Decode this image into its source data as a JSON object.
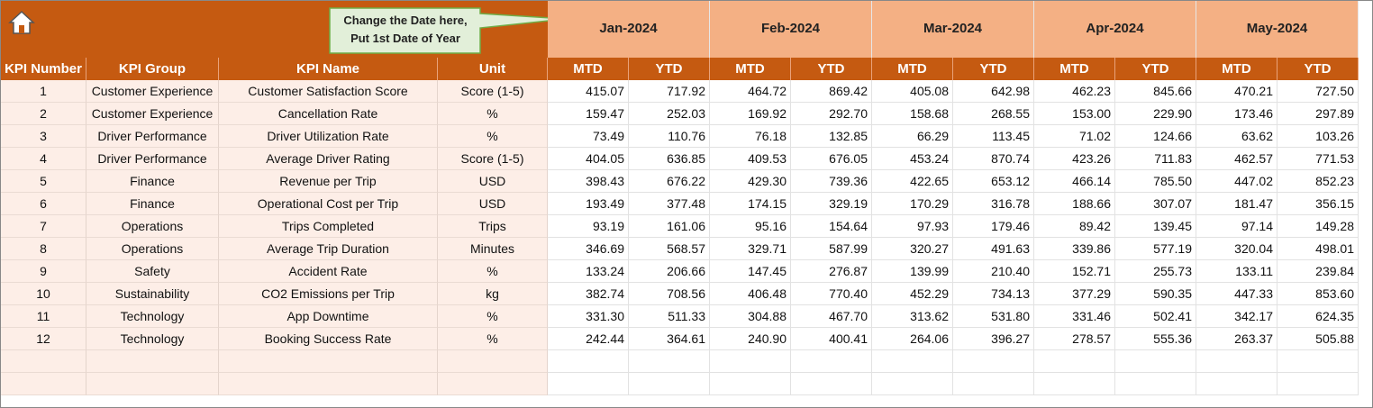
{
  "callout": {
    "lines": [
      "Change the Date here,",
      "Put 1st Date of Year"
    ]
  },
  "table": {
    "columns": [
      "KPI Number",
      "KPI Group",
      "KPI Name",
      "Unit"
    ],
    "months": [
      {
        "label": "Jan-2024",
        "sub": [
          "MTD",
          "YTD"
        ]
      },
      {
        "label": "Feb-2024",
        "sub": [
          "MTD",
          "YTD"
        ]
      },
      {
        "label": "Mar-2024",
        "sub": [
          "MTD",
          "YTD"
        ]
      },
      {
        "label": "Apr-2024",
        "sub": [
          "MTD",
          "YTD"
        ]
      },
      {
        "label": "May-2024",
        "sub": [
          "MTD",
          "YTD"
        ]
      }
    ],
    "rows": [
      [
        "1",
        "Customer Experience",
        "Customer Satisfaction Score",
        "Score (1-5)",
        "415.07",
        "717.92",
        "464.72",
        "869.42",
        "405.08",
        "642.98",
        "462.23",
        "845.66",
        "470.21",
        "727.50"
      ],
      [
        "2",
        "Customer Experience",
        "Cancellation Rate",
        "%",
        "159.47",
        "252.03",
        "169.92",
        "292.70",
        "158.68",
        "268.55",
        "153.00",
        "229.90",
        "173.46",
        "297.89"
      ],
      [
        "3",
        "Driver Performance",
        "Driver Utilization Rate",
        "%",
        "73.49",
        "110.76",
        "76.18",
        "132.85",
        "66.29",
        "113.45",
        "71.02",
        "124.66",
        "63.62",
        "103.26"
      ],
      [
        "4",
        "Driver Performance",
        "Average Driver Rating",
        "Score (1-5)",
        "404.05",
        "636.85",
        "409.53",
        "676.05",
        "453.24",
        "870.74",
        "423.26",
        "711.83",
        "462.57",
        "771.53"
      ],
      [
        "5",
        "Finance",
        "Revenue per Trip",
        "USD",
        "398.43",
        "676.22",
        "429.30",
        "739.36",
        "422.65",
        "653.12",
        "466.14",
        "785.50",
        "447.02",
        "852.23"
      ],
      [
        "6",
        "Finance",
        "Operational Cost per Trip",
        "USD",
        "193.49",
        "377.48",
        "174.15",
        "329.19",
        "170.29",
        "316.78",
        "188.66",
        "307.07",
        "181.47",
        "356.15"
      ],
      [
        "7",
        "Operations",
        "Trips Completed",
        "Trips",
        "93.19",
        "161.06",
        "95.16",
        "154.64",
        "97.93",
        "179.46",
        "89.42",
        "139.45",
        "97.14",
        "149.28"
      ],
      [
        "8",
        "Operations",
        "Average Trip Duration",
        "Minutes",
        "346.69",
        "568.57",
        "329.71",
        "587.99",
        "320.27",
        "491.63",
        "339.86",
        "577.19",
        "320.04",
        "498.01"
      ],
      [
        "9",
        "Safety",
        "Accident Rate",
        "%",
        "133.24",
        "206.66",
        "147.45",
        "276.87",
        "139.99",
        "210.40",
        "152.71",
        "255.73",
        "133.11",
        "239.84"
      ],
      [
        "10",
        "Sustainability",
        "CO2 Emissions per Trip",
        "kg",
        "382.74",
        "708.56",
        "406.48",
        "770.40",
        "452.29",
        "734.13",
        "377.29",
        "590.35",
        "447.33",
        "853.60"
      ],
      [
        "11",
        "Technology",
        "App Downtime",
        "%",
        "331.30",
        "511.33",
        "304.88",
        "467.70",
        "313.62",
        "531.80",
        "331.46",
        "502.41",
        "342.17",
        "624.35"
      ],
      [
        "12",
        "Technology",
        "Booking Success Rate",
        "%",
        "242.44",
        "364.61",
        "240.90",
        "400.41",
        "264.06",
        "396.27",
        "278.57",
        "555.36",
        "263.37",
        "505.88"
      ]
    ]
  }
}
